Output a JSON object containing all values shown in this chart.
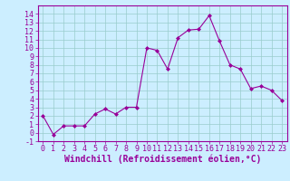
{
  "x": [
    0,
    1,
    2,
    3,
    4,
    5,
    6,
    7,
    8,
    9,
    10,
    11,
    12,
    13,
    14,
    15,
    16,
    17,
    18,
    19,
    20,
    21,
    22,
    23
  ],
  "y": [
    2,
    -0.2,
    0.8,
    0.8,
    0.8,
    2.2,
    2.8,
    2.2,
    3.0,
    3.0,
    10.0,
    9.7,
    7.5,
    11.2,
    12.1,
    12.2,
    13.8,
    10.8,
    8.0,
    7.5,
    5.2,
    5.5,
    5.0,
    3.8
  ],
  "line_color": "#990099",
  "marker": "D",
  "marker_size": 2,
  "bg_color": "#cceeff",
  "grid_color": "#99cccc",
  "xlabel": "Windchill (Refroidissement éolien,°C)",
  "xlabel_color": "#990099",
  "tick_color": "#990099",
  "ylim": [
    -1,
    15
  ],
  "xlim": [
    -0.5,
    23.5
  ],
  "yticks": [
    -1,
    0,
    1,
    2,
    3,
    4,
    5,
    6,
    7,
    8,
    9,
    10,
    11,
    12,
    13,
    14
  ],
  "xticks": [
    0,
    1,
    2,
    3,
    4,
    5,
    6,
    7,
    8,
    9,
    10,
    11,
    12,
    13,
    14,
    15,
    16,
    17,
    18,
    19,
    20,
    21,
    22,
    23
  ],
  "spine_color": "#990099",
  "font_size": 6,
  "xlabel_fontsize": 7
}
